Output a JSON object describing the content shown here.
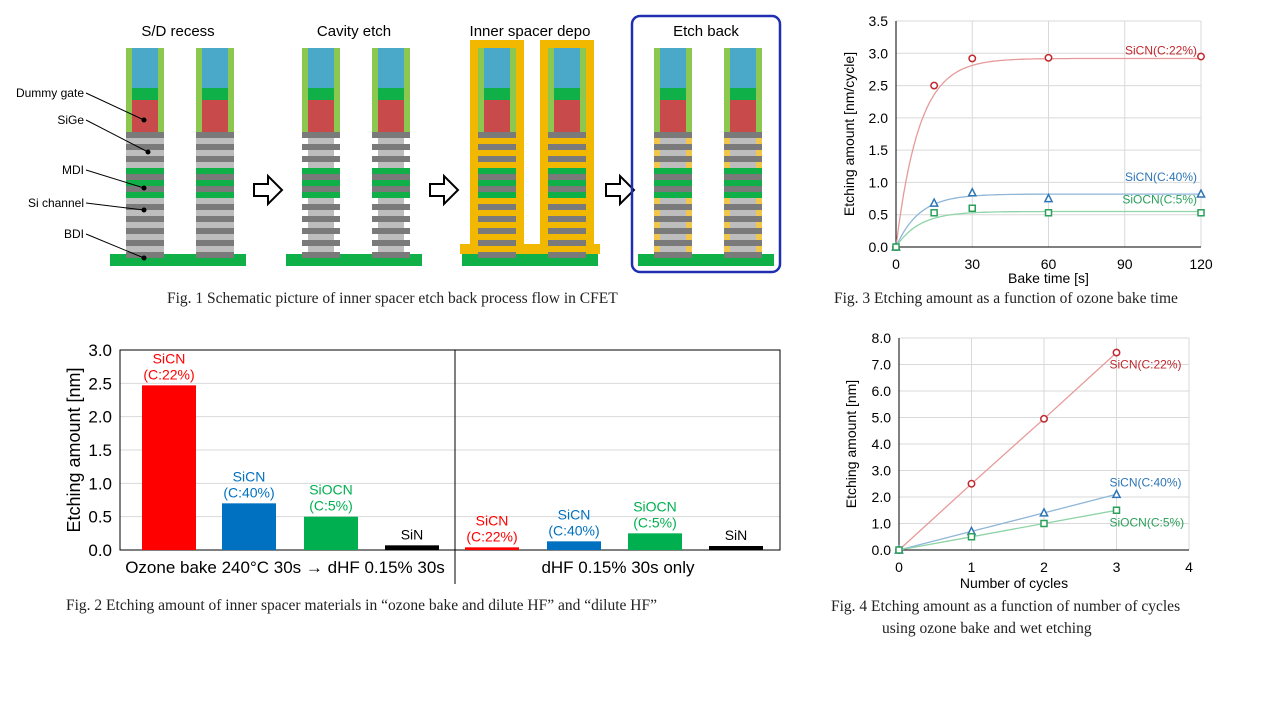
{
  "fig1": {
    "steps": [
      "S/D recess",
      "Cavity etch",
      "Inner spacer depo",
      "Etch back"
    ],
    "layer_labels": [
      "Dummy gate",
      "SiGe",
      "MDI",
      "Si channel",
      "BDI"
    ],
    "caption": "Fig. 1  Schematic picture of inner spacer etch back process flow in CFET",
    "colors": {
      "gate_top": "#4aa8c8",
      "gate_liner": "#8cc850",
      "sige": "#c84a4a",
      "green": "#10b048",
      "gray_dark": "#7a7a7a",
      "gray_light": "#bdbdbd",
      "spacer": "#f2b800",
      "highlight": "#1f2fb0"
    }
  },
  "fig2": {
    "caption": "Fig. 2  Etching amount of inner spacer materials in “ozone bake and dilute HF” and “dilute HF”",
    "group_labels": [
      "Ozone bake 240°C 30s → dHF 0.15% 30s",
      "dHF 0.15% 30s only"
    ]
  },
  "fig3": {
    "caption": "Fig. 3  Etching amount as a function of ozone bake time"
  },
  "fig4": {
    "caption_line1": "Fig. 4  Etching amount as a function of number of cycles",
    "caption_line2": "using ozone bake and wet etching"
  },
  "chart_data": [
    {
      "type": "bar",
      "ylabel": "Etching amount [nm]",
      "ylim": [
        0,
        3.0
      ],
      "yticks": [
        "0.0",
        "0.5",
        "1.0",
        "1.5",
        "2.0",
        "2.5",
        "3.0"
      ],
      "grid": true,
      "bars": [
        {
          "label": "SiCN\n(C:22%)",
          "group": "Ozone bake 240°C 30s → dHF 0.15% 30s",
          "value": 2.47,
          "color": "#ff0000"
        },
        {
          "label": "SiCN\n(C:40%)",
          "group": "Ozone bake 240°C 30s → dHF 0.15% 30s",
          "value": 0.7,
          "color": "#0070c0"
        },
        {
          "label": "SiOCN\n(C:5%)",
          "group": "Ozone bake 240°C 30s → dHF 0.15% 30s",
          "value": 0.5,
          "color": "#00b050"
        },
        {
          "label": "SiN",
          "group": "Ozone bake 240°C 30s → dHF 0.15% 30s",
          "value": 0.07,
          "color": "#000000"
        },
        {
          "label": "SiCN\n(C:22%)",
          "group": "dHF 0.15% 30s only",
          "value": 0.04,
          "color": "#ff0000"
        },
        {
          "label": "SiCN\n(C:40%)",
          "group": "dHF 0.15% 30s only",
          "value": 0.13,
          "color": "#0070c0"
        },
        {
          "label": "SiOCN\n(C:5%)",
          "group": "dHF 0.15% 30s only",
          "value": 0.25,
          "color": "#00b050"
        },
        {
          "label": "SiN",
          "group": "dHF 0.15% 30s only",
          "value": 0.06,
          "color": "#000000"
        }
      ]
    },
    {
      "type": "scatter",
      "xlabel": "Bake time [s]",
      "ylabel": "Etching amount [nm/cycle]",
      "xlim": [
        0,
        120
      ],
      "ylim": [
        0,
        3.5
      ],
      "xticks": [
        "0",
        "30",
        "60",
        "90",
        "120"
      ],
      "yticks": [
        "0.0",
        "0.5",
        "1.0",
        "1.5",
        "2.0",
        "2.5",
        "3.0",
        "3.5"
      ],
      "grid": true,
      "series": [
        {
          "name": "SiCN(C:22%)",
          "marker": "circle",
          "color": "#c0282d",
          "line_color": "#e79a9a",
          "x": [
            0,
            15,
            30,
            60,
            120
          ],
          "y": [
            0,
            2.5,
            2.92,
            2.93,
            2.95
          ],
          "plateau": 2.92
        },
        {
          "name": "SiCN(C:40%)",
          "marker": "triangle",
          "color": "#2e75b6",
          "line_color": "#8fb6d8",
          "x": [
            0,
            15,
            30,
            60,
            120
          ],
          "y": [
            0,
            0.68,
            0.84,
            0.75,
            0.82
          ],
          "plateau": 0.82
        },
        {
          "name": "SiOCN(C:5%)",
          "marker": "square",
          "color": "#2aa05a",
          "line_color": "#8fd4a8",
          "x": [
            0,
            15,
            30,
            60,
            120
          ],
          "y": [
            0,
            0.53,
            0.6,
            0.53,
            0.53
          ],
          "plateau": 0.55
        }
      ]
    },
    {
      "type": "scatter",
      "xlabel": "Number of cycles",
      "ylabel": "Etching amount [nm]",
      "xlim": [
        0,
        4
      ],
      "ylim": [
        0,
        8.0
      ],
      "xticks": [
        "0",
        "1",
        "2",
        "3",
        "4"
      ],
      "yticks": [
        "0.0",
        "1.0",
        "2.0",
        "3.0",
        "4.0",
        "5.0",
        "6.0",
        "7.0",
        "8.0"
      ],
      "grid": true,
      "series": [
        {
          "name": "SiCN(C:22%)",
          "marker": "circle",
          "color": "#c0282d",
          "line_color": "#e79a9a",
          "x": [
            0,
            1,
            2,
            3
          ],
          "y": [
            0,
            2.5,
            4.95,
            7.45
          ]
        },
        {
          "name": "SiCN(C:40%)",
          "marker": "triangle",
          "color": "#2e75b6",
          "line_color": "#8fb6d8",
          "x": [
            0,
            1,
            2,
            3
          ],
          "y": [
            0,
            0.7,
            1.4,
            2.1
          ]
        },
        {
          "name": "SiOCN(C:5%)",
          "marker": "square",
          "color": "#2aa05a",
          "line_color": "#8fd4a8",
          "x": [
            0,
            1,
            2,
            3
          ],
          "y": [
            0,
            0.5,
            1.0,
            1.5
          ]
        }
      ]
    }
  ]
}
